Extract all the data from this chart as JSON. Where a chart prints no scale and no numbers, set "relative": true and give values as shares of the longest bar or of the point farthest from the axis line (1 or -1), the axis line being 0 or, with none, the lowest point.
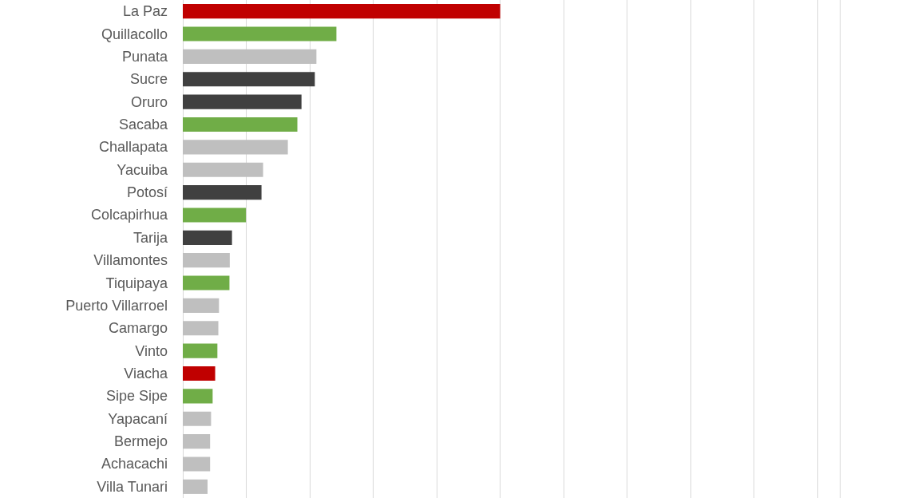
{
  "chart_data": {
    "type": "bar",
    "orientation": "horizontal",
    "relative": true,
    "categories": [
      "La Paz",
      "Quillacollo",
      "Punata",
      "Sucre",
      "Oruro",
      "Sacaba",
      "Challapata",
      "Yacuiba",
      "Potosí",
      "Colcapirhua",
      "Tarija",
      "Villamontes",
      "Tiquipaya",
      "Puerto Villarroel",
      "Camargo",
      "Vinto",
      "Viacha",
      "Sipe Sipe",
      "Yapacaní",
      "Bermejo",
      "Achacachi",
      "Villa Tunari"
    ],
    "values": [
      1,
      0.484,
      0.421,
      0.416,
      0.374,
      0.361,
      0.331,
      0.253,
      0.248,
      0.199,
      0.155,
      0.148,
      0.147,
      0.114,
      0.112,
      0.109,
      0.102,
      0.094,
      0.089,
      0.086,
      0.086,
      0.078
    ],
    "colors": [
      "#c00000",
      "#70ad47",
      "#bfbfbf",
      "#404040",
      "#404040",
      "#70ad47",
      "#bfbfbf",
      "#bfbfbf",
      "#404040",
      "#70ad47",
      "#404040",
      "#bfbfbf",
      "#70ad47",
      "#bfbfbf",
      "#bfbfbf",
      "#70ad47",
      "#c00000",
      "#70ad47",
      "#bfbfbf",
      "#bfbfbf",
      "#bfbfbf",
      "#bfbfbf"
    ],
    "grid": "x"
  }
}
